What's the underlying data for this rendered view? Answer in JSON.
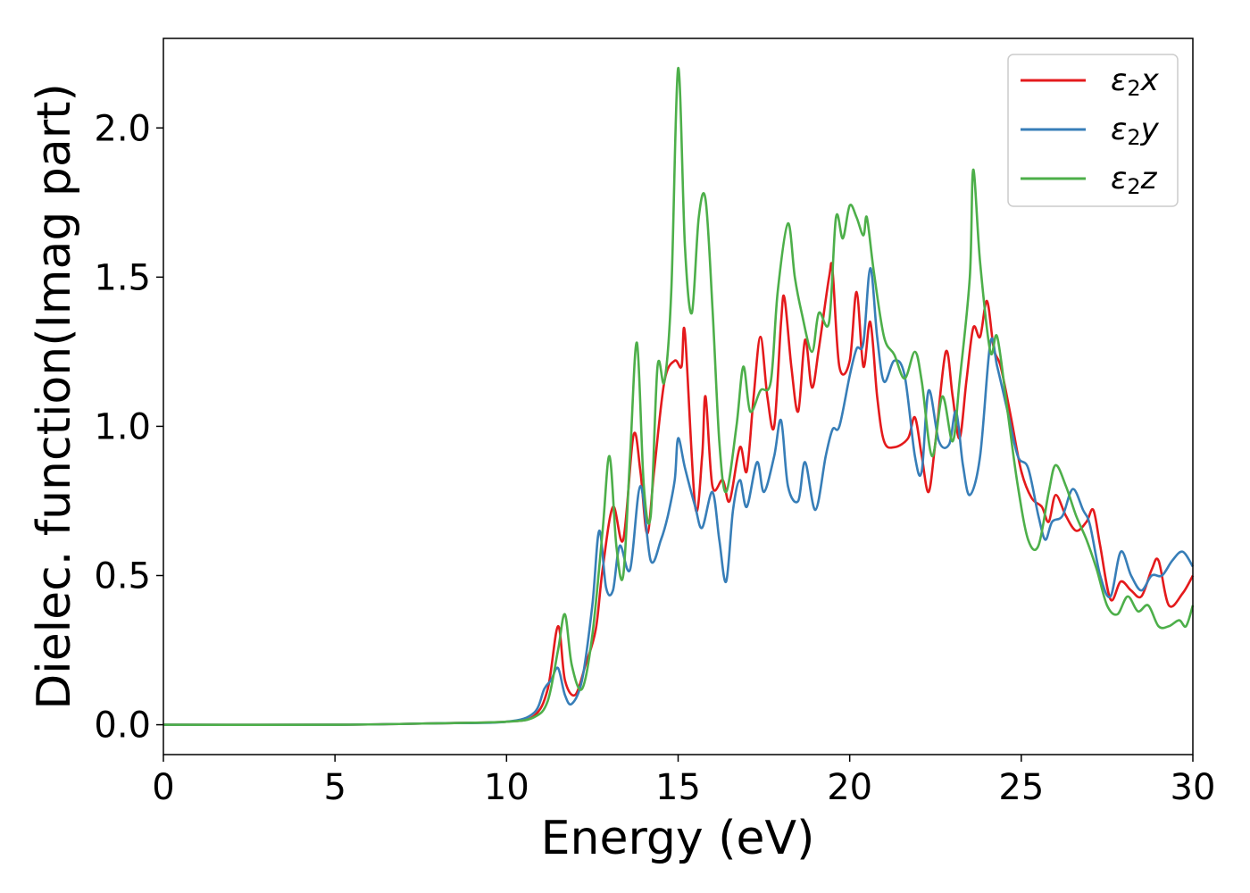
{
  "chart_data": {
    "type": "line",
    "xlabel": "Energy (eV)",
    "ylabel": "Dielec. function(Imag part)",
    "xlim": [
      0,
      30
    ],
    "ylim": [
      -0.1,
      2.3
    ],
    "xticks": [
      "0",
      "5",
      "10",
      "15",
      "20",
      "25",
      "30"
    ],
    "yticks": [
      "0.0",
      "0.5",
      "1.0",
      "1.5",
      "2.0"
    ],
    "grid": false,
    "legend_position": "top-right",
    "series": [
      {
        "name_symbol": "ε",
        "name_sub": "2",
        "name_axis": "x",
        "color": "#e41a1c",
        "points": [
          [
            0,
            0
          ],
          [
            5,
            0
          ],
          [
            8,
            0.005
          ],
          [
            10,
            0.01
          ],
          [
            10.8,
            0.03
          ],
          [
            11.2,
            0.12
          ],
          [
            11.5,
            0.33
          ],
          [
            11.7,
            0.15
          ],
          [
            12.0,
            0.1
          ],
          [
            12.3,
            0.2
          ],
          [
            12.6,
            0.32
          ],
          [
            12.8,
            0.52
          ],
          [
            13.1,
            0.73
          ],
          [
            13.4,
            0.62
          ],
          [
            13.7,
            0.97
          ],
          [
            13.9,
            0.85
          ],
          [
            14.1,
            0.64
          ],
          [
            14.3,
            0.85
          ],
          [
            14.6,
            1.15
          ],
          [
            14.9,
            1.22
          ],
          [
            15.1,
            1.2
          ],
          [
            15.2,
            1.31
          ],
          [
            15.5,
            0.73
          ],
          [
            15.7,
            0.9
          ],
          [
            15.8,
            1.1
          ],
          [
            16.0,
            0.8
          ],
          [
            16.3,
            0.82
          ],
          [
            16.5,
            0.75
          ],
          [
            16.8,
            0.93
          ],
          [
            17.0,
            0.85
          ],
          [
            17.2,
            1.1
          ],
          [
            17.4,
            1.3
          ],
          [
            17.6,
            1.1
          ],
          [
            17.8,
            1.0
          ],
          [
            18.0,
            1.35
          ],
          [
            18.1,
            1.43
          ],
          [
            18.3,
            1.2
          ],
          [
            18.5,
            1.05
          ],
          [
            18.7,
            1.29
          ],
          [
            18.9,
            1.13
          ],
          [
            19.1,
            1.26
          ],
          [
            19.4,
            1.5
          ],
          [
            19.5,
            1.52
          ],
          [
            19.7,
            1.2
          ],
          [
            20.0,
            1.22
          ],
          [
            20.2,
            1.45
          ],
          [
            20.4,
            1.2
          ],
          [
            20.6,
            1.35
          ],
          [
            20.8,
            1.1
          ],
          [
            21.0,
            0.95
          ],
          [
            21.3,
            0.93
          ],
          [
            21.7,
            0.96
          ],
          [
            21.9,
            1.03
          ],
          [
            22.1,
            0.9
          ],
          [
            22.3,
            0.78
          ],
          [
            22.5,
            0.95
          ],
          [
            22.8,
            1.25
          ],
          [
            23.0,
            1.1
          ],
          [
            23.2,
            0.96
          ],
          [
            23.4,
            1.15
          ],
          [
            23.6,
            1.33
          ],
          [
            23.8,
            1.3
          ],
          [
            24.0,
            1.42
          ],
          [
            24.2,
            1.26
          ],
          [
            24.4,
            1.2
          ],
          [
            24.7,
            1.03
          ],
          [
            25.0,
            0.85
          ],
          [
            25.3,
            0.76
          ],
          [
            25.6,
            0.73
          ],
          [
            25.8,
            0.68
          ],
          [
            26.0,
            0.77
          ],
          [
            26.3,
            0.7
          ],
          [
            26.6,
            0.65
          ],
          [
            26.9,
            0.68
          ],
          [
            27.1,
            0.72
          ],
          [
            27.3,
            0.6
          ],
          [
            27.6,
            0.42
          ],
          [
            27.9,
            0.48
          ],
          [
            28.2,
            0.45
          ],
          [
            28.5,
            0.43
          ],
          [
            28.8,
            0.52
          ],
          [
            29.0,
            0.55
          ],
          [
            29.3,
            0.4
          ],
          [
            29.7,
            0.44
          ],
          [
            30.0,
            0.5
          ]
        ]
      },
      {
        "name_symbol": "ε",
        "name_sub": "2",
        "name_axis": "y",
        "color": "#377eb8",
        "points": [
          [
            0,
            0
          ],
          [
            5,
            0
          ],
          [
            8,
            0.005
          ],
          [
            10,
            0.01
          ],
          [
            10.8,
            0.04
          ],
          [
            11.1,
            0.12
          ],
          [
            11.3,
            0.15
          ],
          [
            11.5,
            0.19
          ],
          [
            11.7,
            0.1
          ],
          [
            11.9,
            0.07
          ],
          [
            12.2,
            0.15
          ],
          [
            12.5,
            0.4
          ],
          [
            12.7,
            0.65
          ],
          [
            12.9,
            0.46
          ],
          [
            13.1,
            0.45
          ],
          [
            13.3,
            0.6
          ],
          [
            13.6,
            0.52
          ],
          [
            13.9,
            0.8
          ],
          [
            14.2,
            0.55
          ],
          [
            14.5,
            0.62
          ],
          [
            14.7,
            0.7
          ],
          [
            14.9,
            0.82
          ],
          [
            15.0,
            0.96
          ],
          [
            15.2,
            0.86
          ],
          [
            15.5,
            0.73
          ],
          [
            15.7,
            0.66
          ],
          [
            16.0,
            0.78
          ],
          [
            16.2,
            0.62
          ],
          [
            16.4,
            0.48
          ],
          [
            16.6,
            0.72
          ],
          [
            16.8,
            0.82
          ],
          [
            17.0,
            0.73
          ],
          [
            17.3,
            0.88
          ],
          [
            17.5,
            0.78
          ],
          [
            17.8,
            0.9
          ],
          [
            18.0,
            1.02
          ],
          [
            18.2,
            0.8
          ],
          [
            18.5,
            0.75
          ],
          [
            18.7,
            0.88
          ],
          [
            19.0,
            0.72
          ],
          [
            19.3,
            0.9
          ],
          [
            19.5,
            0.99
          ],
          [
            19.7,
            1.0
          ],
          [
            20.0,
            1.17
          ],
          [
            20.2,
            1.26
          ],
          [
            20.4,
            1.28
          ],
          [
            20.6,
            1.53
          ],
          [
            20.8,
            1.3
          ],
          [
            21.0,
            1.15
          ],
          [
            21.3,
            1.22
          ],
          [
            21.6,
            1.17
          ],
          [
            21.9,
            0.9
          ],
          [
            22.1,
            0.85
          ],
          [
            22.3,
            1.12
          ],
          [
            22.6,
            0.95
          ],
          [
            22.9,
            0.94
          ],
          [
            23.1,
            1.05
          ],
          [
            23.3,
            0.87
          ],
          [
            23.5,
            0.77
          ],
          [
            23.8,
            0.9
          ],
          [
            24.1,
            1.28
          ],
          [
            24.3,
            1.2
          ],
          [
            24.6,
            1.05
          ],
          [
            24.9,
            0.9
          ],
          [
            25.2,
            0.86
          ],
          [
            25.5,
            0.7
          ],
          [
            25.7,
            0.62
          ],
          [
            25.9,
            0.68
          ],
          [
            26.2,
            0.7
          ],
          [
            26.5,
            0.79
          ],
          [
            26.8,
            0.72
          ],
          [
            27.0,
            0.67
          ],
          [
            27.3,
            0.5
          ],
          [
            27.6,
            0.43
          ],
          [
            27.9,
            0.58
          ],
          [
            28.2,
            0.5
          ],
          [
            28.5,
            0.45
          ],
          [
            28.8,
            0.5
          ],
          [
            29.1,
            0.5
          ],
          [
            29.4,
            0.55
          ],
          [
            29.7,
            0.58
          ],
          [
            30.0,
            0.53
          ]
        ]
      },
      {
        "name_symbol": "ε",
        "name_sub": "2",
        "name_axis": "z",
        "color": "#4daf4a",
        "points": [
          [
            0,
            0
          ],
          [
            5,
            0
          ],
          [
            8,
            0.005
          ],
          [
            10,
            0.01
          ],
          [
            10.8,
            0.025
          ],
          [
            11.2,
            0.08
          ],
          [
            11.5,
            0.25
          ],
          [
            11.7,
            0.37
          ],
          [
            11.9,
            0.2
          ],
          [
            12.2,
            0.12
          ],
          [
            12.5,
            0.3
          ],
          [
            12.8,
            0.65
          ],
          [
            13.0,
            0.9
          ],
          [
            13.2,
            0.6
          ],
          [
            13.4,
            0.5
          ],
          [
            13.6,
            0.9
          ],
          [
            13.8,
            1.28
          ],
          [
            14.0,
            0.8
          ],
          [
            14.2,
            0.7
          ],
          [
            14.4,
            1.2
          ],
          [
            14.6,
            1.15
          ],
          [
            14.8,
            1.45
          ],
          [
            15.0,
            2.2
          ],
          [
            15.2,
            1.6
          ],
          [
            15.4,
            1.38
          ],
          [
            15.6,
            1.7
          ],
          [
            15.8,
            1.76
          ],
          [
            16.0,
            1.4
          ],
          [
            16.2,
            0.95
          ],
          [
            16.4,
            0.78
          ],
          [
            16.7,
            1.0
          ],
          [
            16.9,
            1.2
          ],
          [
            17.1,
            1.05
          ],
          [
            17.4,
            1.12
          ],
          [
            17.7,
            1.15
          ],
          [
            17.9,
            1.45
          ],
          [
            18.2,
            1.68
          ],
          [
            18.4,
            1.5
          ],
          [
            18.6,
            1.38
          ],
          [
            18.9,
            1.25
          ],
          [
            19.1,
            1.38
          ],
          [
            19.4,
            1.35
          ],
          [
            19.6,
            1.7
          ],
          [
            19.8,
            1.63
          ],
          [
            20.0,
            1.74
          ],
          [
            20.2,
            1.7
          ],
          [
            20.4,
            1.64
          ],
          [
            20.5,
            1.7
          ],
          [
            20.7,
            1.52
          ],
          [
            21.0,
            1.3
          ],
          [
            21.3,
            1.24
          ],
          [
            21.6,
            1.16
          ],
          [
            21.9,
            1.25
          ],
          [
            22.1,
            1.15
          ],
          [
            22.4,
            0.9
          ],
          [
            22.7,
            1.1
          ],
          [
            23.0,
            0.95
          ],
          [
            23.2,
            1.15
          ],
          [
            23.5,
            1.5
          ],
          [
            23.6,
            1.86
          ],
          [
            23.8,
            1.55
          ],
          [
            24.1,
            1.25
          ],
          [
            24.3,
            1.3
          ],
          [
            24.6,
            1.05
          ],
          [
            24.9,
            0.8
          ],
          [
            25.2,
            0.62
          ],
          [
            25.5,
            0.6
          ],
          [
            25.8,
            0.78
          ],
          [
            26.0,
            0.87
          ],
          [
            26.3,
            0.8
          ],
          [
            26.6,
            0.7
          ],
          [
            26.9,
            0.62
          ],
          [
            27.2,
            0.52
          ],
          [
            27.5,
            0.4
          ],
          [
            27.8,
            0.37
          ],
          [
            28.1,
            0.43
          ],
          [
            28.4,
            0.38
          ],
          [
            28.7,
            0.4
          ],
          [
            29.0,
            0.33
          ],
          [
            29.3,
            0.33
          ],
          [
            29.6,
            0.35
          ],
          [
            29.8,
            0.33
          ],
          [
            30.0,
            0.4
          ]
        ]
      }
    ]
  }
}
